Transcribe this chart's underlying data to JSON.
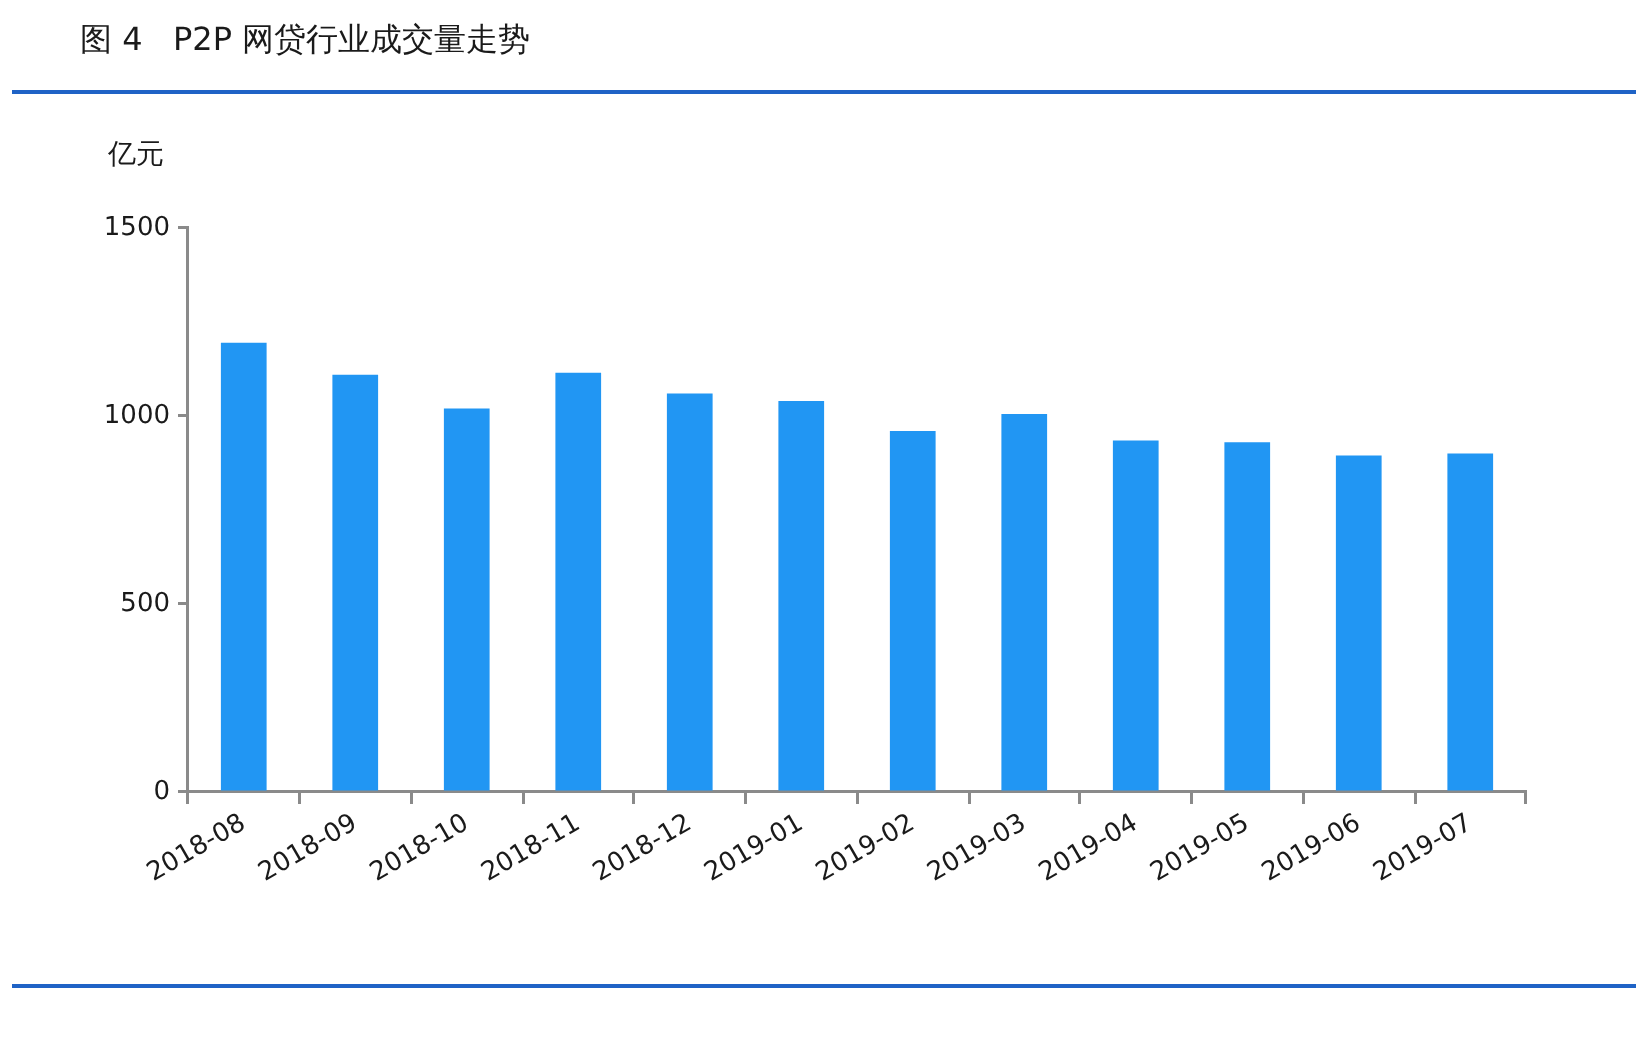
{
  "chart_data": {
    "type": "bar",
    "title": "图 4   P2P 网贷行业成交量走势",
    "ylabel": "亿元",
    "categories": [
      "2018-08",
      "2018-09",
      "2018-10",
      "2018-11",
      "2018-12",
      "2019-01",
      "2019-02",
      "2019-03",
      "2019-04",
      "2019-05",
      "2019-06",
      "2019-07"
    ],
    "values": [
      1195,
      1110,
      1020,
      1115,
      1060,
      1040,
      960,
      1005,
      935,
      930,
      895,
      900
    ],
    "color": "#2196f3",
    "ylim": [
      0,
      1500
    ],
    "yticks": [
      0,
      500,
      1000,
      1500
    ]
  }
}
